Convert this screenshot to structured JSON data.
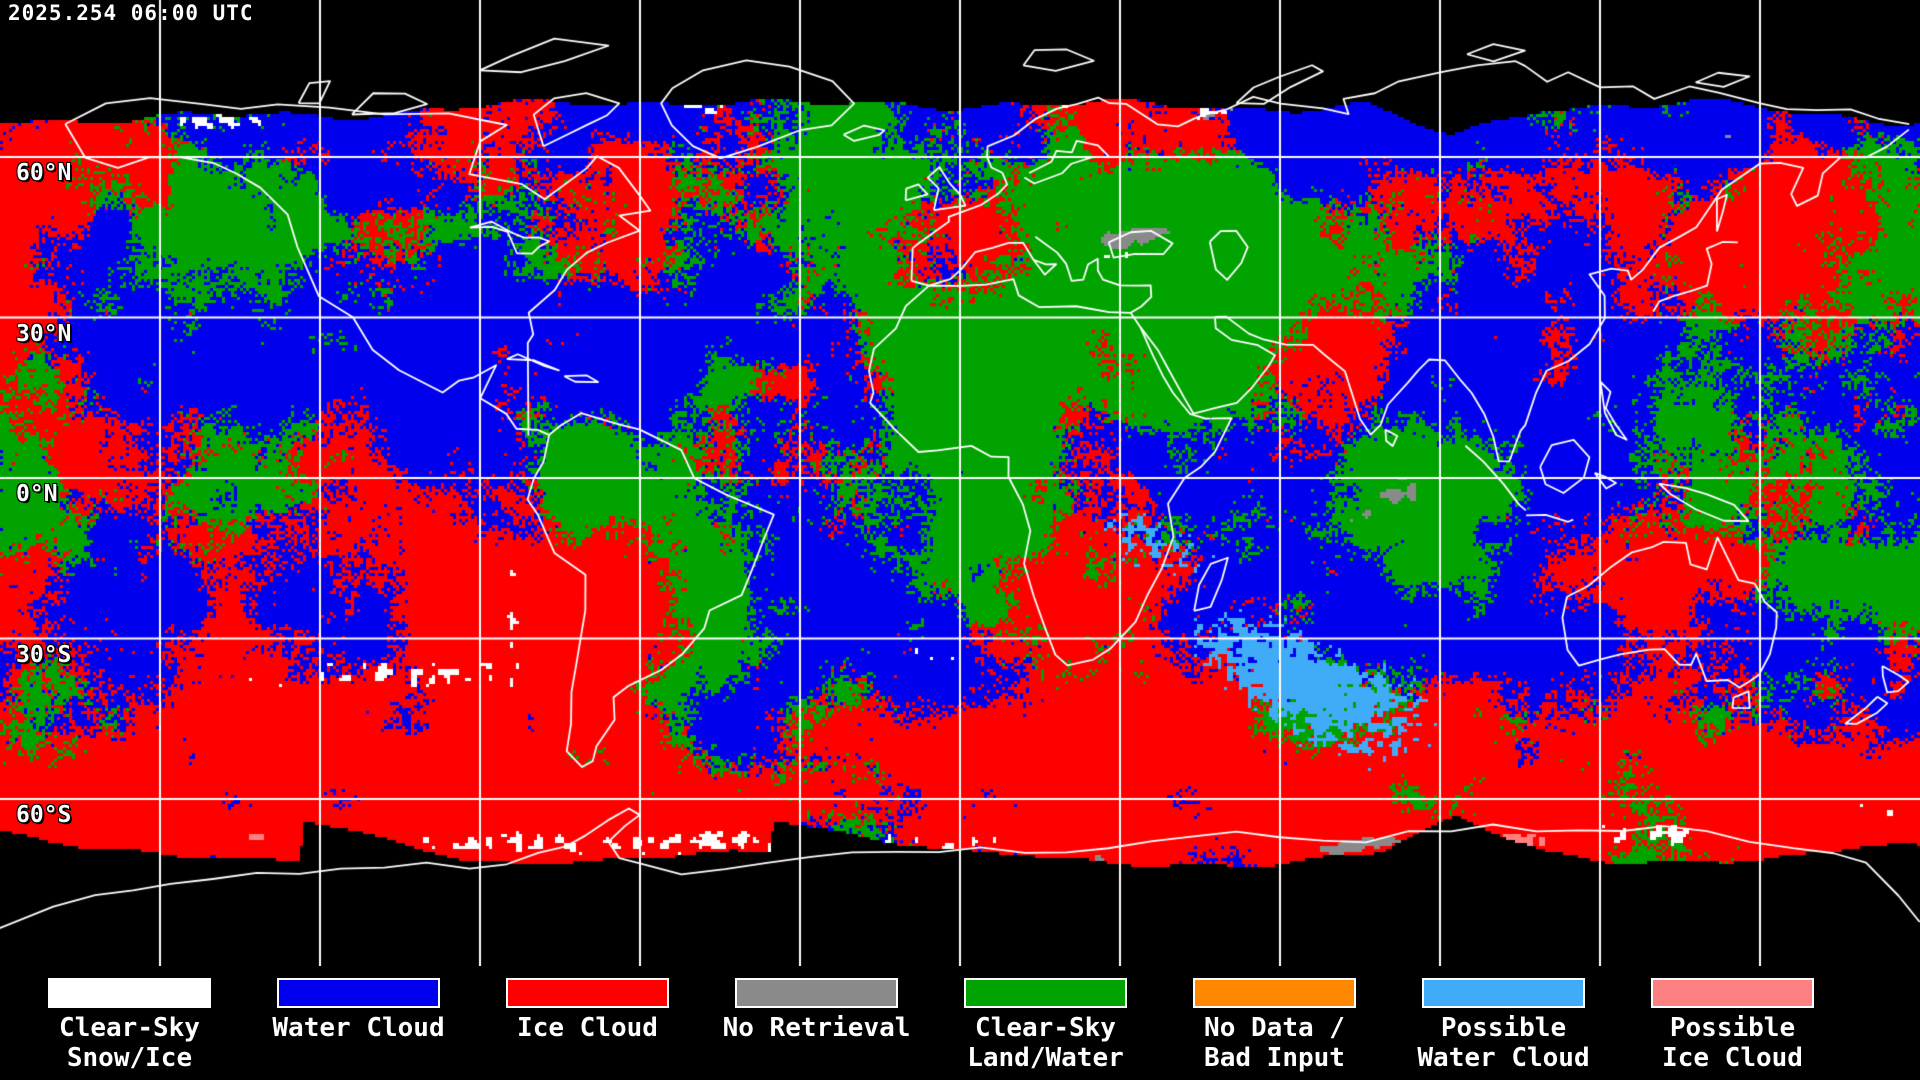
{
  "header": {
    "timestamp": "2025.254 06:00 UTC"
  },
  "map": {
    "latitude_labels": [
      {
        "text": "60°N"
      },
      {
        "text": "30°N"
      },
      {
        "text": "0°N"
      },
      {
        "text": "30°S"
      },
      {
        "text": "60°S"
      }
    ],
    "colors": {
      "background": "#000000",
      "graticule": "#ffffff",
      "coastline": "#ffffff"
    }
  },
  "legend": {
    "entries": [
      {
        "key": "clear-sky-snow-ice",
        "color": "#ffffff",
        "label_lines": [
          "Clear-Sky",
          "Snow/Ice"
        ]
      },
      {
        "key": "water-cloud",
        "color": "#0000ee",
        "label_lines": [
          "Water Cloud"
        ]
      },
      {
        "key": "ice-cloud",
        "color": "#ff0000",
        "label_lines": [
          "Ice Cloud"
        ]
      },
      {
        "key": "no-retrieval",
        "color": "#8a8a8a",
        "label_lines": [
          "No Retrieval"
        ]
      },
      {
        "key": "clear-sky-land-water",
        "color": "#00a300",
        "label_lines": [
          "Clear-Sky",
          "Land/Water"
        ]
      },
      {
        "key": "no-data-bad-input",
        "color": "#ff8800",
        "label_lines": [
          "No Data /",
          "Bad Input"
        ]
      },
      {
        "key": "possible-water-cloud",
        "color": "#40acf8",
        "label_lines": [
          "Possible",
          "Water Cloud"
        ]
      },
      {
        "key": "possible-ice-cloud",
        "color": "#ff8080",
        "label_lines": [
          "Possible",
          "Ice Cloud"
        ]
      }
    ]
  }
}
